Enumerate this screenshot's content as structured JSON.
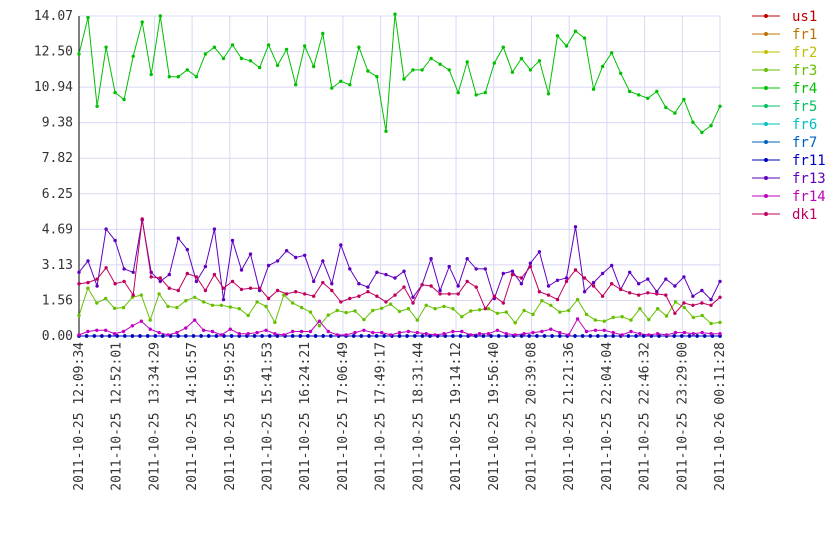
{
  "chart_data": {
    "type": "line",
    "title": "",
    "xlabel": "",
    "ylabel": "",
    "ylim": [
      0,
      14.07
    ],
    "grid": true,
    "legend_position": "right",
    "y_ticks": [
      "0.00",
      "1.56",
      "3.13",
      "4.69",
      "6.25",
      "7.82",
      "9.38",
      "10.94",
      "12.50",
      "14.07"
    ],
    "x_tick_labels": [
      "2011-10-25 12:09:34",
      "2011-10-25 12:52:01",
      "2011-10-25 13:34:29",
      "2011-10-25 14:16:57",
      "2011-10-25 14:59:25",
      "2011-10-25 15:41:53",
      "2011-10-25 16:24:21",
      "2011-10-25 17:06:49",
      "2011-10-25 17:49:17",
      "2011-10-25 18:31:44",
      "2011-10-25 19:14:12",
      "2011-10-25 19:56:40",
      "2011-10-25 20:39:08",
      "2011-10-25 21:21:36",
      "2011-10-25 22:04:04",
      "2011-10-25 22:46:32",
      "2011-10-25 23:29:00",
      "2011-10-26 00:11:28"
    ],
    "series": [
      {
        "name": "us1",
        "color": "#c00000",
        "values": [
          0,
          0,
          0,
          0,
          0,
          0,
          0,
          0,
          0,
          0,
          0,
          0,
          0,
          0,
          0,
          0,
          0,
          0,
          0,
          0,
          0,
          0,
          0,
          0,
          0,
          0,
          0,
          0,
          0,
          0,
          0,
          0,
          0,
          0,
          0,
          0,
          0,
          0,
          0,
          0,
          0,
          0,
          0,
          0,
          0,
          0,
          0,
          0,
          0,
          0,
          0,
          0,
          0,
          0,
          0,
          0,
          0,
          0,
          0,
          0,
          0,
          0,
          0,
          0,
          0,
          0,
          0,
          0,
          0,
          0,
          0,
          0,
          0,
          0,
          0,
          0,
          0,
          0,
          0,
          0,
          0,
          0,
          0,
          0,
          0
        ]
      },
      {
        "name": "fr1",
        "color": "#c07000",
        "values": [
          0,
          0,
          0,
          0,
          0,
          0,
          0,
          0,
          0,
          0,
          0,
          0,
          0,
          0,
          0,
          0,
          0,
          0,
          0,
          0,
          0,
          0,
          0,
          0,
          0,
          0,
          0,
          0,
          0,
          0,
          0,
          0,
          0,
          0,
          0,
          0,
          0,
          0,
          0,
          0,
          0,
          0,
          0,
          0,
          0,
          0,
          0,
          0,
          0,
          0,
          0,
          0,
          0,
          0,
          0,
          0,
          0,
          0,
          0,
          0,
          0,
          0,
          0,
          0,
          0,
          0,
          0,
          0,
          0,
          0,
          0,
          0,
          0,
          0,
          0,
          0,
          0,
          0,
          0,
          0,
          0,
          0,
          0,
          0,
          0
        ]
      },
      {
        "name": "fr2",
        "color": "#c0c000",
        "values": [
          0,
          0,
          0,
          0,
          0,
          0,
          0,
          0,
          0,
          0,
          0,
          0,
          0,
          0,
          0,
          0,
          0,
          0,
          0,
          0,
          0,
          0,
          0,
          0,
          0,
          0,
          0,
          0,
          0,
          0,
          0,
          0,
          0,
          0,
          0,
          0,
          0,
          0,
          0,
          0,
          0,
          0,
          0,
          0,
          0,
          0,
          0,
          0,
          0,
          0,
          0,
          0,
          0,
          0,
          0,
          0,
          0,
          0,
          0,
          0,
          0,
          0,
          0,
          0,
          0,
          0,
          0,
          0,
          0,
          0,
          0,
          0,
          0,
          0,
          0,
          0,
          0,
          0,
          0,
          0,
          0,
          0,
          0,
          0,
          0
        ]
      },
      {
        "name": "fr3",
        "color": "#66c000",
        "values": [
          0.9,
          2.1,
          1.45,
          1.65,
          1.22,
          1.25,
          1.7,
          1.8,
          0.7,
          1.85,
          1.3,
          1.25,
          1.55,
          1.7,
          1.5,
          1.35,
          1.35,
          1.27,
          1.2,
          0.9,
          1.5,
          1.3,
          0.6,
          1.8,
          1.45,
          1.25,
          1.05,
          0.45,
          0.92,
          1.12,
          1.03,
          1.1,
          0.72,
          1.12,
          1.22,
          1.4,
          1.08,
          1.2,
          0.7,
          1.35,
          1.2,
          1.3,
          1.2,
          0.85,
          1.1,
          1.15,
          1.2,
          1.0,
          1.05,
          0.58,
          1.12,
          0.95,
          1.55,
          1.35,
          1.05,
          1.12,
          1.6,
          0.95,
          0.7,
          0.65,
          0.82,
          0.85,
          0.7,
          1.2,
          0.72,
          1.2,
          0.88,
          1.5,
          1.25,
          0.82,
          0.9,
          0.55,
          0.6
        ]
      },
      {
        "name": "fr4",
        "color": "#00c000",
        "values": [
          12.4,
          14.0,
          10.1,
          12.7,
          10.7,
          10.4,
          12.3,
          13.8,
          11.5,
          14.07,
          11.4,
          11.4,
          11.7,
          11.4,
          12.4,
          12.7,
          12.2,
          12.8,
          12.2,
          12.1,
          11.8,
          12.8,
          11.9,
          12.6,
          11.05,
          12.75,
          11.85,
          13.3,
          10.9,
          11.2,
          11.05,
          12.7,
          11.65,
          11.4,
          9.0,
          14.15,
          11.3,
          11.7,
          11.7,
          12.2,
          11.95,
          11.7,
          10.7,
          12.05,
          10.6,
          10.7,
          12.0,
          12.7,
          11.6,
          12.2,
          11.7,
          12.1,
          10.65,
          13.2,
          12.75,
          13.4,
          13.1,
          10.85,
          11.85,
          12.45,
          11.55,
          10.75,
          10.6,
          10.45,
          10.75,
          10.05,
          9.8,
          10.4,
          9.4,
          8.95,
          9.25,
          10.1
        ]
      },
      {
        "name": "fr5",
        "color": "#00c060",
        "values": [
          0,
          0,
          0,
          0,
          0,
          0,
          0,
          0,
          0,
          0,
          0,
          0,
          0,
          0,
          0,
          0,
          0,
          0,
          0,
          0,
          0,
          0,
          0,
          0,
          0,
          0,
          0,
          0,
          0,
          0,
          0,
          0,
          0,
          0,
          0,
          0,
          0,
          0,
          0,
          0,
          0,
          0,
          0,
          0,
          0,
          0,
          0,
          0,
          0,
          0,
          0,
          0,
          0,
          0,
          0,
          0,
          0,
          0,
          0,
          0,
          0,
          0,
          0,
          0,
          0,
          0,
          0,
          0,
          0,
          0,
          0,
          0,
          0,
          0,
          0,
          0,
          0,
          0,
          0,
          0,
          0,
          0,
          0,
          0,
          0
        ]
      },
      {
        "name": "fr6",
        "color": "#00c0c0",
        "values": [
          0,
          0,
          0,
          0,
          0,
          0,
          0,
          0,
          0,
          0,
          0,
          0,
          0,
          0,
          0,
          0,
          0,
          0,
          0,
          0,
          0,
          0,
          0,
          0,
          0,
          0,
          0,
          0,
          0,
          0,
          0,
          0,
          0,
          0,
          0,
          0,
          0,
          0,
          0,
          0,
          0,
          0,
          0,
          0,
          0,
          0,
          0,
          0,
          0,
          0,
          0,
          0,
          0,
          0,
          0,
          0,
          0,
          0,
          0,
          0,
          0,
          0,
          0,
          0,
          0,
          0,
          0,
          0,
          0,
          0,
          0,
          0,
          0,
          0,
          0,
          0,
          0,
          0,
          0,
          0,
          0,
          0,
          0,
          0,
          0
        ]
      },
      {
        "name": "fr7",
        "color": "#0060c0",
        "values": [
          0,
          0,
          0,
          0,
          0,
          0,
          0,
          0,
          0,
          0,
          0,
          0,
          0,
          0,
          0,
          0,
          0,
          0,
          0,
          0,
          0,
          0,
          0,
          0,
          0,
          0,
          0,
          0,
          0,
          0,
          0,
          0,
          0,
          0,
          0,
          0,
          0,
          0,
          0,
          0,
          0,
          0,
          0,
          0,
          0,
          0,
          0,
          0,
          0,
          0,
          0,
          0,
          0,
          0,
          0,
          0,
          0,
          0,
          0,
          0,
          0,
          0,
          0,
          0,
          0,
          0,
          0,
          0,
          0,
          0,
          0,
          0,
          0,
          0,
          0,
          0,
          0,
          0,
          0,
          0,
          0,
          0,
          0,
          0,
          0
        ]
      },
      {
        "name": "fr11",
        "color": "#0000c0",
        "values": [
          0,
          0,
          0,
          0,
          0,
          0,
          0,
          0,
          0,
          0,
          0,
          0,
          0,
          0,
          0,
          0,
          0,
          0,
          0,
          0,
          0,
          0,
          0,
          0,
          0,
          0,
          0,
          0,
          0,
          0,
          0,
          0,
          0,
          0,
          0,
          0,
          0,
          0,
          0,
          0,
          0,
          0,
          0,
          0,
          0,
          0,
          0,
          0,
          0,
          0,
          0,
          0,
          0,
          0,
          0,
          0,
          0,
          0,
          0,
          0,
          0,
          0,
          0,
          0,
          0,
          0,
          0,
          0,
          0,
          0,
          0,
          0,
          0,
          0,
          0,
          0,
          0,
          0,
          0,
          0,
          0,
          0,
          0,
          0,
          0
        ]
      },
      {
        "name": "fr13",
        "color": "#6000c0",
        "values": [
          2.8,
          3.3,
          2.2,
          4.7,
          4.2,
          2.95,
          2.8,
          5.1,
          2.8,
          2.4,
          2.7,
          4.3,
          3.8,
          2.4,
          3.05,
          4.7,
          1.6,
          4.2,
          2.9,
          3.6,
          2.0,
          3.1,
          3.3,
          3.75,
          3.45,
          3.55,
          2.4,
          3.3,
          2.3,
          4.0,
          2.95,
          2.3,
          2.15,
          2.8,
          2.7,
          2.55,
          2.85,
          1.7,
          2.25,
          3.4,
          2.0,
          3.05,
          2.2,
          3.4,
          2.95,
          2.95,
          1.65,
          2.75,
          2.85,
          2.3,
          3.2,
          3.7,
          2.2,
          2.45,
          2.55,
          4.8,
          1.95,
          2.35,
          2.75,
          3.1,
          2.05,
          2.8,
          2.3,
          2.5,
          1.95,
          2.5,
          2.2,
          2.6,
          1.75,
          2.0,
          1.6,
          2.4
        ]
      },
      {
        "name": "fr14",
        "color": "#c000c0",
        "values": [
          0.05,
          0.2,
          0.25,
          0.25,
          0.1,
          0.2,
          0.45,
          0.65,
          0.3,
          0.15,
          0.05,
          0.15,
          0.35,
          0.7,
          0.25,
          0.2,
          0.05,
          0.3,
          0.1,
          0.1,
          0.15,
          0.25,
          0.1,
          0.05,
          0.2,
          0.2,
          0.2,
          0.65,
          0.2,
          0.05,
          0.05,
          0.15,
          0.25,
          0.15,
          0.15,
          0.05,
          0.15,
          0.2,
          0.15,
          0.1,
          0.05,
          0.1,
          0.2,
          0.2,
          0.05,
          0.1,
          0.1,
          0.25,
          0.1,
          0.05,
          0.1,
          0.15,
          0.2,
          0.3,
          0.15,
          0.05,
          0.75,
          0.2,
          0.25,
          0.25,
          0.15,
          0.05,
          0.2,
          0.1,
          0.05,
          0.1,
          0.05,
          0.15,
          0.15,
          0.1,
          0.15,
          0.1,
          0.1
        ]
      },
      {
        "name": "dk1",
        "color": "#c00060",
        "values": [
          2.3,
          2.35,
          2.5,
          3.0,
          2.3,
          2.4,
          1.8,
          5.15,
          2.6,
          2.55,
          2.1,
          2.0,
          2.75,
          2.6,
          2.0,
          2.7,
          2.1,
          2.4,
          2.05,
          2.1,
          2.1,
          1.65,
          2.0,
          1.85,
          1.95,
          1.85,
          1.75,
          2.35,
          2.0,
          1.5,
          1.65,
          1.75,
          1.95,
          1.75,
          1.5,
          1.8,
          2.15,
          1.45,
          2.25,
          2.2,
          1.85,
          1.85,
          1.85,
          2.4,
          2.15,
          1.2,
          1.75,
          1.45,
          2.7,
          2.55,
          3.05,
          1.95,
          1.8,
          1.6,
          2.4,
          2.9,
          2.55,
          2.2,
          1.75,
          2.3,
          2.05,
          1.9,
          1.8,
          1.9,
          1.85,
          1.8,
          1.0,
          1.45,
          1.35,
          1.45,
          1.35,
          1.7
        ]
      }
    ]
  }
}
